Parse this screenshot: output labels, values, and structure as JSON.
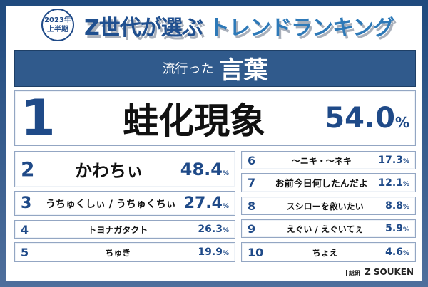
{
  "header": {
    "badge_line1": "2023年",
    "badge_line2": "上半期",
    "title_part1": "Z世代が選ぶ",
    "title_part2": "トレンドランキング"
  },
  "banner": {
    "small": "流行った",
    "big": "言葉"
  },
  "percent_sign": "%",
  "ranking": [
    {
      "rank": "1",
      "word": "蛙化現象",
      "percent": "54.0"
    },
    {
      "rank": "2",
      "word": "かわちぃ",
      "percent": "48.4"
    },
    {
      "rank": "3",
      "word": "うちゅくしぃ / うちゅくちぃ",
      "percent": "27.4"
    },
    {
      "rank": "4",
      "word": "トヨナガタクト",
      "percent": "26.3"
    },
    {
      "rank": "5",
      "word": "ちゅき",
      "percent": "19.9"
    },
    {
      "rank": "6",
      "word": "～ニキ・～ネキ",
      "percent": "17.3"
    },
    {
      "rank": "7",
      "word": "お前今日何したんだよ",
      "percent": "12.1"
    },
    {
      "rank": "8",
      "word": "スシローを救いたい",
      "percent": "8.8"
    },
    {
      "rank": "9",
      "word": "えぐい / えぐいてぇ",
      "percent": "5.9"
    },
    {
      "rank": "10",
      "word": "ちょえ",
      "percent": "4.6"
    }
  ],
  "logo": {
    "text": "Z SOUKEN",
    "mark": "総研"
  },
  "colors": {
    "accent": "#1f4a88",
    "banner": "#305a8c"
  }
}
